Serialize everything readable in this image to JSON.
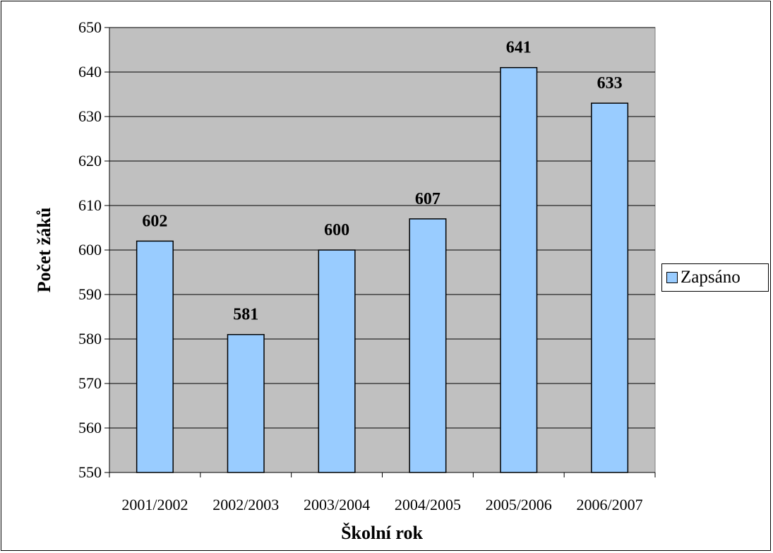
{
  "chart_data": {
    "type": "bar",
    "categories": [
      "2001/2002",
      "2002/2003",
      "2003/2004",
      "2004/2005",
      "2005/2006",
      "2006/2007"
    ],
    "series": [
      {
        "name": "Zapsáno",
        "values": [
          602,
          581,
          600,
          607,
          641,
          633
        ],
        "color": "#99ccff"
      }
    ],
    "data_labels": [
      "602",
      "581",
      "600",
      "607",
      "641",
      "633"
    ],
    "xlabel": "Školní rok",
    "ylabel": "Počet žáků",
    "ylim": [
      550,
      650
    ],
    "yticks": [
      "550",
      "560",
      "570",
      "580",
      "590",
      "600",
      "610",
      "620",
      "630",
      "640",
      "650"
    ],
    "grid": true,
    "legend_position": "right",
    "plot_background": "#c0c0c0",
    "bar_border_color": "#000000"
  }
}
